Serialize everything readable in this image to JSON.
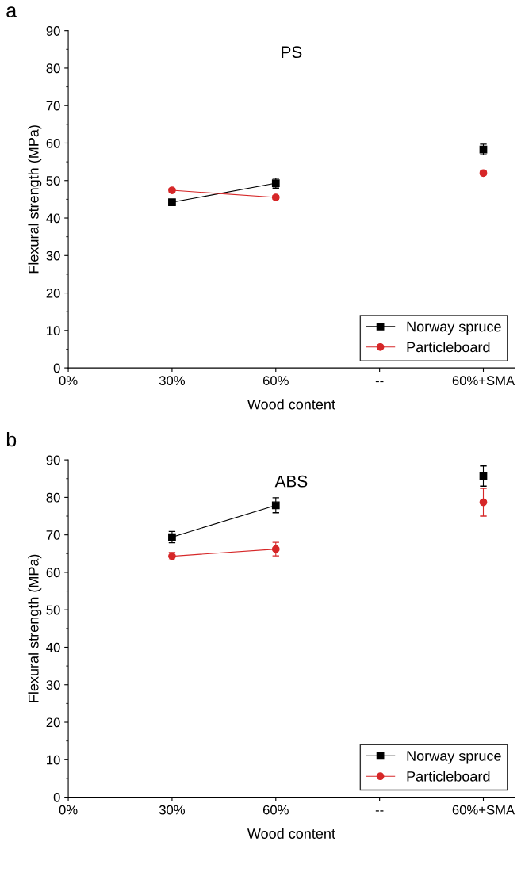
{
  "chart_data": [
    {
      "type": "line",
      "title": "PS",
      "xlabel": "Wood content",
      "ylabel": "Flexural strength (MPa)",
      "annotations": [
        "a"
      ],
      "categories": [
        "0%",
        "30%",
        "60%",
        "--",
        "60%+SMA"
      ],
      "ylim": [
        0,
        90
      ],
      "yticks": [
        0,
        10,
        20,
        30,
        40,
        50,
        60,
        70,
        80,
        90
      ],
      "legend": "bottom right",
      "grid": false,
      "series": [
        {
          "name": "Norway spruce",
          "color": "#000000",
          "marker": "square",
          "values": [
            null,
            44.2,
            49.3,
            null,
            58.3
          ],
          "errors": [
            null,
            0.5,
            1.3,
            null,
            1.4
          ]
        },
        {
          "name": "Particleboard",
          "color": "#d62728",
          "marker": "circle",
          "values": [
            null,
            47.4,
            45.5,
            null,
            52.0
          ],
          "errors": [
            null,
            0.5,
            0.5,
            null,
            0.5
          ]
        }
      ]
    },
    {
      "type": "line",
      "title": "ABS",
      "xlabel": "Wood content",
      "ylabel": "Flexural strength (MPa)",
      "annotations": [
        "b"
      ],
      "categories": [
        "0%",
        "30%",
        "60%",
        "--",
        "60%+SMA"
      ],
      "ylim": [
        0,
        90
      ],
      "yticks": [
        0,
        10,
        20,
        30,
        40,
        50,
        60,
        70,
        80,
        90
      ],
      "legend": "bottom right",
      "grid": false,
      "series": [
        {
          "name": "Norway spruce",
          "color": "#000000",
          "marker": "square",
          "values": [
            null,
            69.4,
            77.9,
            null,
            85.7
          ],
          "errors": [
            null,
            1.5,
            2.0,
            null,
            2.7
          ]
        },
        {
          "name": "Particleboard",
          "color": "#d62728",
          "marker": "circle",
          "values": [
            null,
            64.3,
            66.2,
            null,
            78.7
          ],
          "errors": [
            null,
            1.0,
            1.8,
            null,
            3.7
          ]
        }
      ]
    }
  ]
}
